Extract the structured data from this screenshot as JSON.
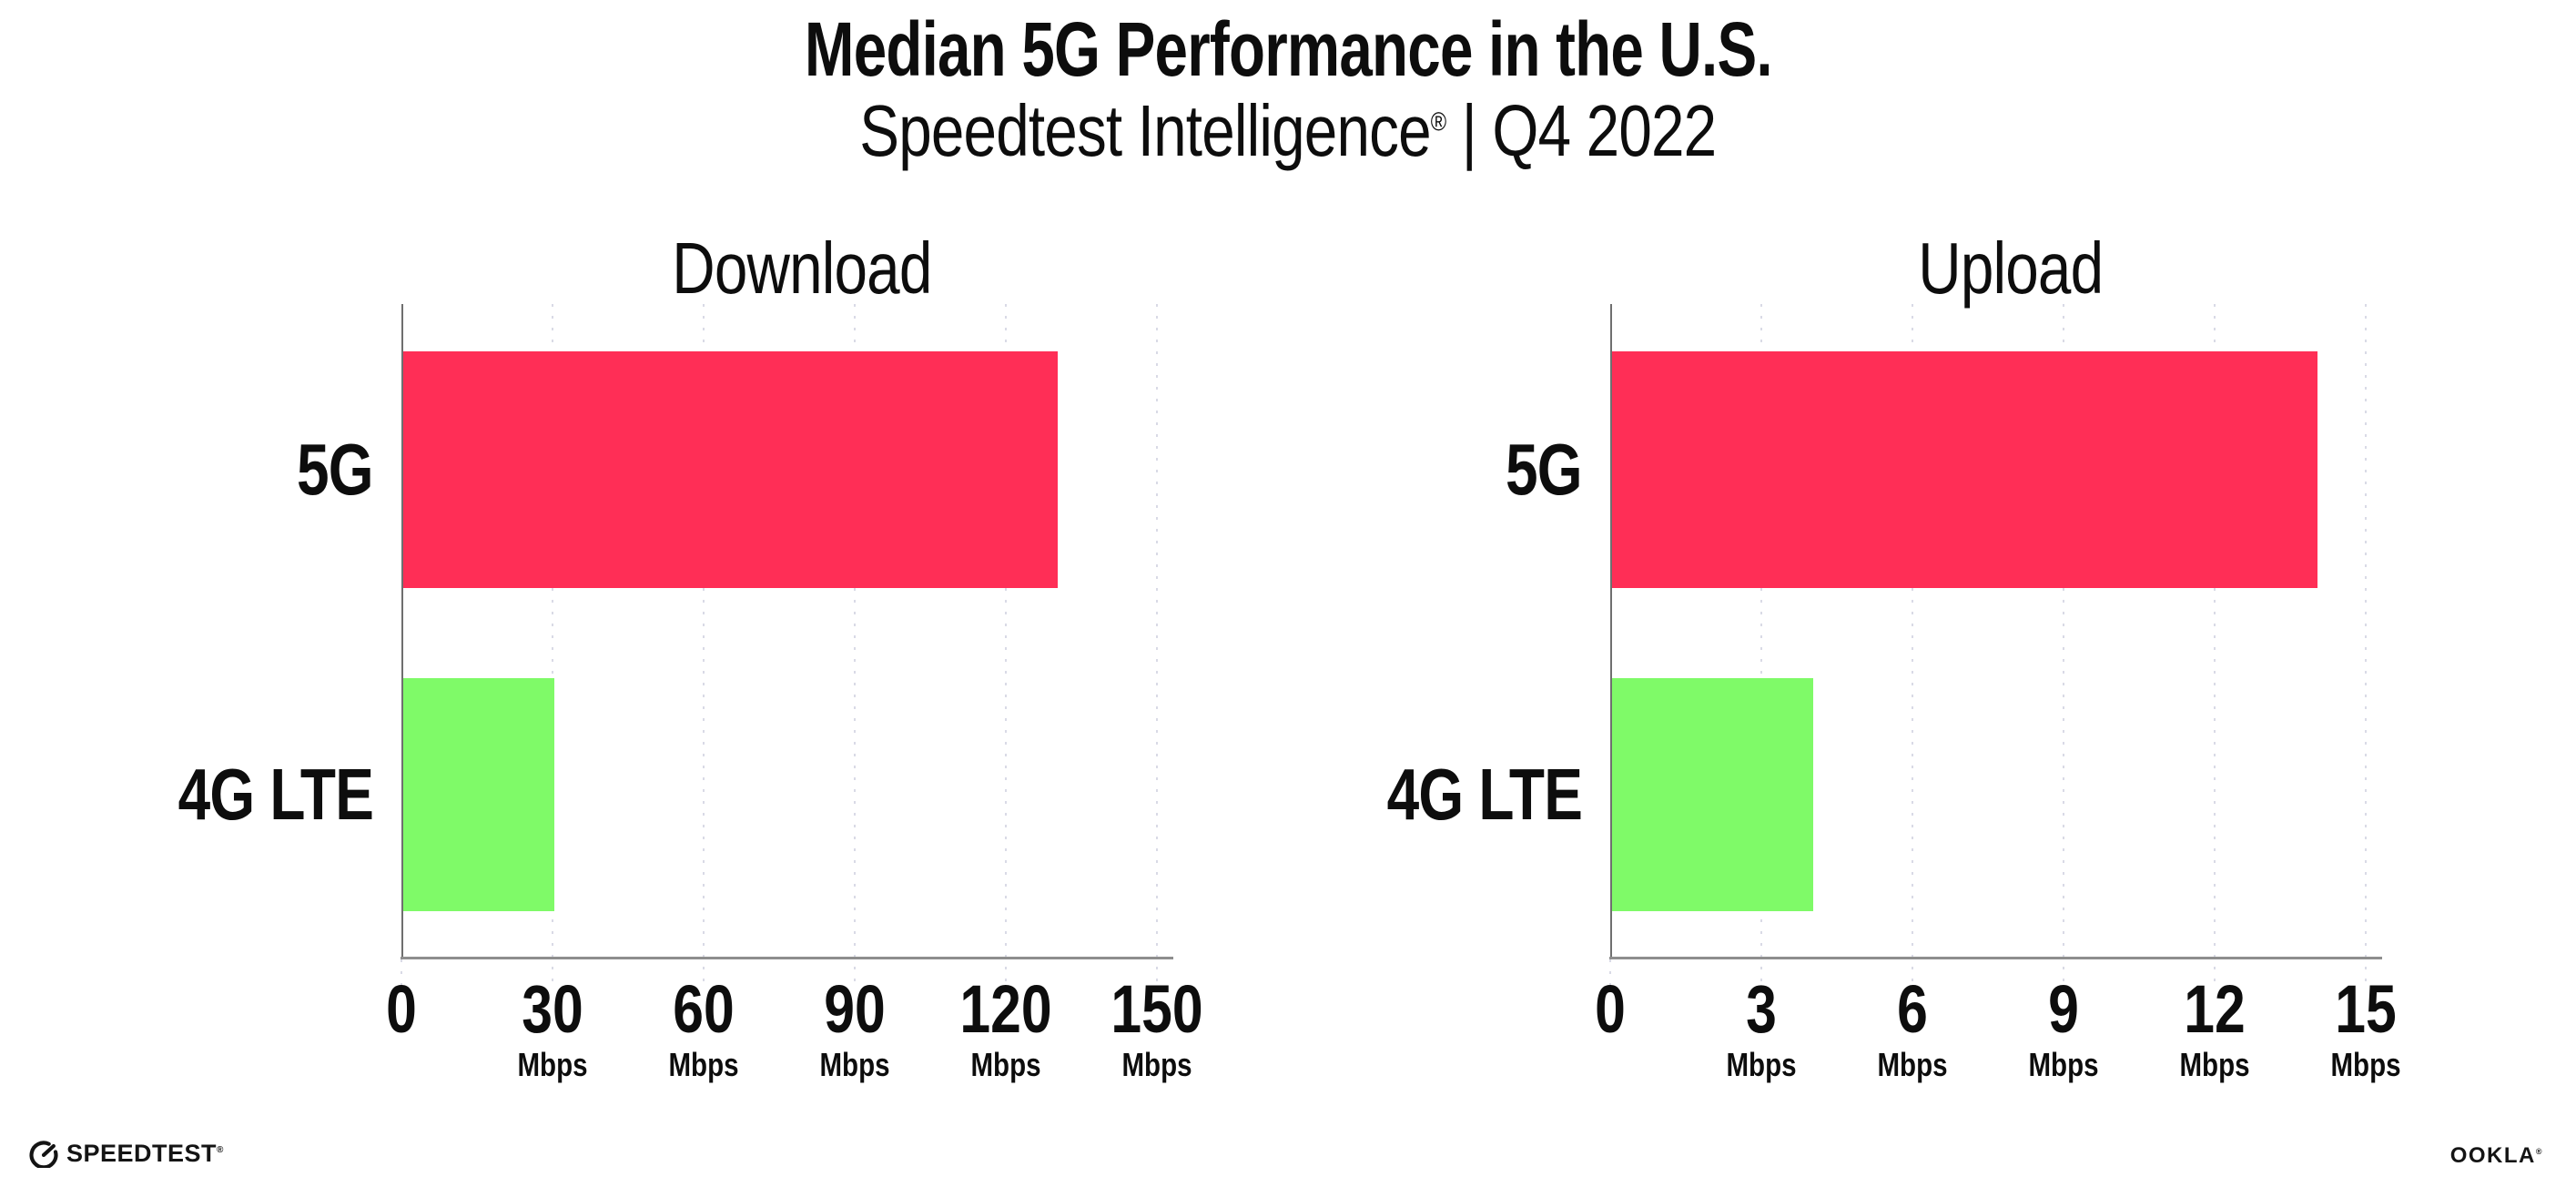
{
  "header": {
    "title": "Median 5G Performance in the U.S.",
    "subtitle_brand": "Speedtest Intelligence",
    "subtitle_reg": "®",
    "subtitle_sep": " | ",
    "subtitle_period": "Q4 2022"
  },
  "colors": {
    "bar_5g": "#ff2e56",
    "bar_4g_lte": "#7ffa68",
    "axis": "#8e8e8e",
    "gridline_dots": "#d9dae6",
    "text": "#0d0d0d"
  },
  "chart_data": [
    {
      "type": "bar",
      "orientation": "horizontal",
      "title": "Download",
      "categories": [
        "5G",
        "4G LTE"
      ],
      "values": [
        130,
        30
      ],
      "unit": "Mbps",
      "xlim": [
        0,
        150
      ],
      "xticks": [
        0,
        30,
        60,
        90,
        120,
        150
      ],
      "xtick_labels": [
        "0",
        "30",
        "60",
        "90",
        "120",
        "150"
      ],
      "tick_unit": "Mbps",
      "colors": [
        "#ff2e56",
        "#7ffa68"
      ],
      "grid": "dotted-vertical",
      "legend": "none"
    },
    {
      "type": "bar",
      "orientation": "horizontal",
      "title": "Upload",
      "categories": [
        "5G",
        "4G LTE"
      ],
      "values": [
        14,
        4
      ],
      "unit": "Mbps",
      "xlim": [
        0,
        15
      ],
      "xticks": [
        0,
        3,
        6,
        9,
        12,
        15
      ],
      "xtick_labels": [
        "0",
        "3",
        "6",
        "9",
        "12",
        "15"
      ],
      "tick_unit": "Mbps",
      "colors": [
        "#ff2e56",
        "#7ffa68"
      ],
      "grid": "dotted-vertical",
      "legend": "none"
    }
  ],
  "footer": {
    "speedtest_label": "SPEEDTEST",
    "speedtest_mark": "®",
    "ookla_label": "OOKLA",
    "ookla_mark": "®"
  }
}
